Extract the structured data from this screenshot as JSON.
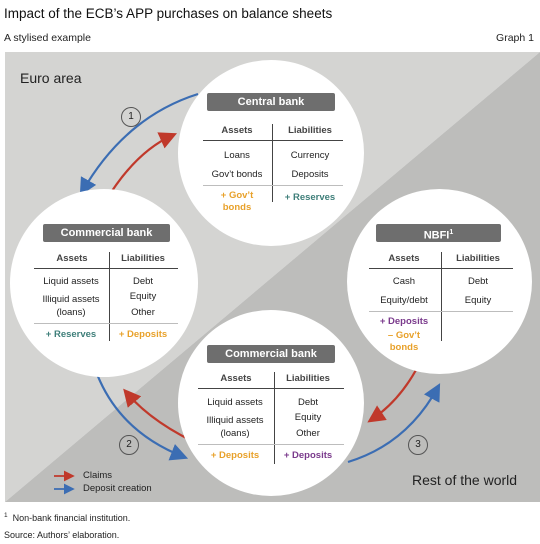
{
  "header": {
    "title": "Impact of the ECB’s APP purchases on balance sheets",
    "subtitle": "A stylised example",
    "graph_no": "Graph 1"
  },
  "regions": {
    "euro_area": "Euro area",
    "rest_of_world": "Rest of the world"
  },
  "central_bank": {
    "title": "Central bank",
    "assets_header": "Assets",
    "liabilities_header": "Liabilities",
    "assets": [
      "Loans",
      "Gov’t bonds"
    ],
    "liabilities": [
      "Currency",
      "Deposits"
    ],
    "asset_change_1": "+ Gov’t",
    "asset_change_2": "bonds",
    "liability_change": "+ Reserves"
  },
  "commercial_bank_ea": {
    "title": "Commercial bank",
    "assets_header": "Assets",
    "liabilities_header": "Liabilities",
    "assets": [
      "Liquid assets",
      "Illiquid assets",
      "(loans)"
    ],
    "liabilities": [
      "Debt",
      "Equity",
      "Other"
    ],
    "asset_change": "+ Reserves",
    "liability_change": "+ Deposits"
  },
  "commercial_bank_row": {
    "title": "Commercial bank",
    "assets_header": "Assets",
    "liabilities_header": "Liabilities",
    "assets": [
      "Liquid assets",
      "Illiquid assets",
      "(loans)"
    ],
    "liabilities": [
      "Debt",
      "Equity",
      "Other"
    ],
    "asset_change": "+ Deposits",
    "liability_change": "+ Deposits"
  },
  "nbfi": {
    "title": "NBFI",
    "title_sup": "1",
    "assets_header": "Assets",
    "liabilities_header": "Liabilities",
    "assets": [
      "Cash",
      "Equity/debt"
    ],
    "liabilities": [
      "Debt",
      "Equity"
    ],
    "asset_change_1": "+ Deposits",
    "asset_change_2": "– Gov’t",
    "asset_change_3": "bonds"
  },
  "steps": [
    "1",
    "2",
    "3"
  ],
  "legend": {
    "claims": "Claims",
    "deposit_creation": "Deposit creation",
    "claims_color": "#c0392b",
    "deposit_color": "#3b6db3"
  },
  "footnotes": {
    "note_sup": "1",
    "note": "Non-bank financial institution.",
    "source": "Source: Authors’ elaboration."
  }
}
